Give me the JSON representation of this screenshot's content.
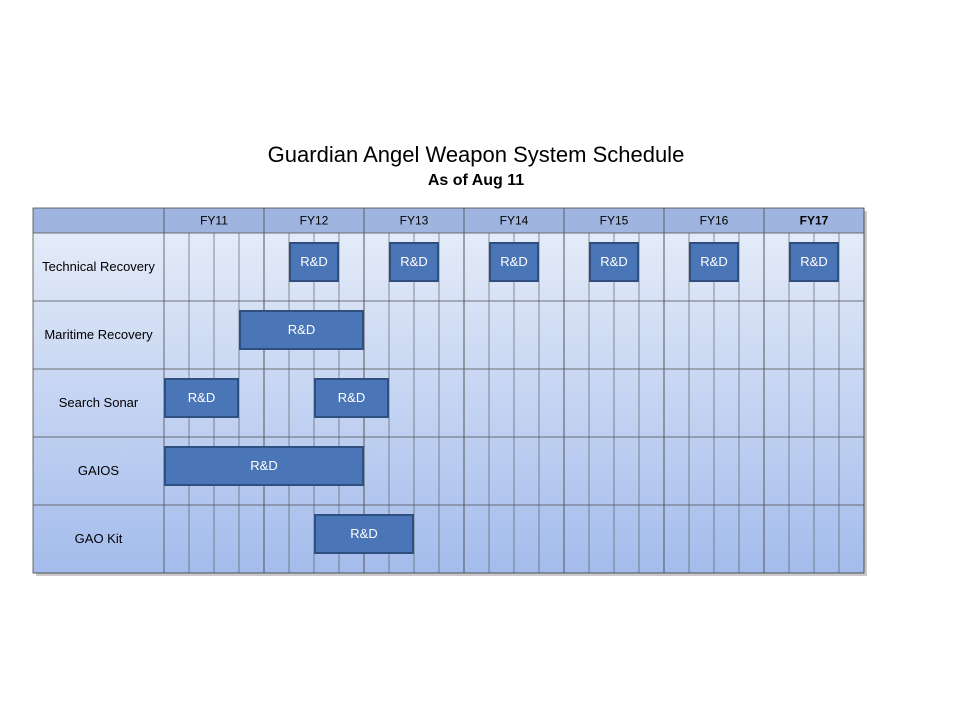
{
  "colors": {
    "header_fill": "#9FB5DF",
    "body_top": "#E4EBF8",
    "body_bottom": "#A4BCEC",
    "grid_line": "#4C4C4C",
    "bar_fill": "#4A76B8",
    "bar_border": "#2F4F80",
    "bar_text": "#FFFFFF"
  },
  "chart_data": {
    "type": "gantt",
    "title": "Guardian Angel Weapon System Schedule",
    "subtitle": "As of Aug 11",
    "periods": [
      "FY11",
      "FY12",
      "FY13",
      "FY14",
      "FY15",
      "FY16",
      "FY17"
    ],
    "bold_period": "FY17",
    "quarters_per_period": 4,
    "rows": [
      {
        "label": "Technical Recovery",
        "tasks": [
          {
            "label": "R&D",
            "start": "FY12 Q2",
            "end": "FY12 Q3"
          },
          {
            "label": "R&D",
            "start": "FY13 Q2",
            "end": "FY13 Q3"
          },
          {
            "label": "R&D",
            "start": "FY14 Q2",
            "end": "FY14 Q3"
          },
          {
            "label": "R&D",
            "start": "FY15 Q2",
            "end": "FY15 Q3"
          },
          {
            "label": "R&D",
            "start": "FY16 Q2",
            "end": "FY16 Q3"
          },
          {
            "label": "R&D",
            "start": "FY17 Q2",
            "end": "FY17 Q3"
          }
        ]
      },
      {
        "label": "Maritime Recovery",
        "tasks": [
          {
            "label": "R&D",
            "start": "FY11 Q4",
            "end": "FY12 Q4"
          }
        ]
      },
      {
        "label": "Search Sonar",
        "tasks": [
          {
            "label": "R&D",
            "start": "FY11 Q1",
            "end": "FY11 Q3"
          },
          {
            "label": "R&D",
            "start": "FY12 Q3",
            "end": "FY13 Q1"
          }
        ]
      },
      {
        "label": "GAIOS",
        "tasks": [
          {
            "label": "R&D",
            "start": "FY11 Q1",
            "end": "FY12 Q4"
          }
        ]
      },
      {
        "label": "GAO Kit",
        "tasks": [
          {
            "label": "R&D",
            "start": "FY12 Q3",
            "end": "FY13 Q2"
          }
        ]
      }
    ]
  }
}
